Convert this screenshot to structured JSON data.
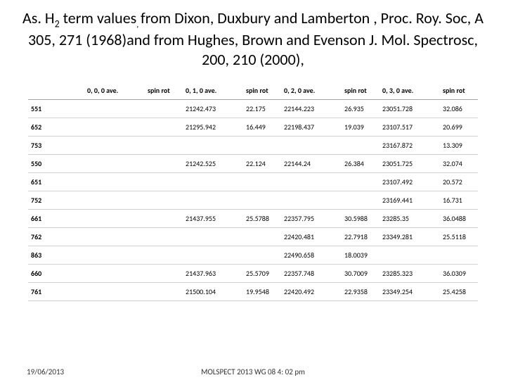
{
  "title_parts": {
    "a": "As. H",
    "sub": "2",
    "b": " term values",
    "comma": ", ",
    "c": "from Dixon, Duxbury and Lamberton , Proc. Roy. Soc, A 305, 271 (1968)and from Hughes, Brown and Evenson J. Mol. Spectrosc, 200, 210 (2000),"
  },
  "columns": [
    "",
    "0, 0, 0 ave.",
    "spin rot",
    "0, 1, 0 ave.",
    "spin rot",
    "0, 2, 0 ave.",
    "spin rot",
    "0, 3, 0 ave.",
    "spin rot"
  ],
  "rows": [
    [
      "551",
      "",
      "",
      "21242.473",
      "22.175",
      "22144.223",
      "26.935",
      "23051.728",
      "32.086"
    ],
    [
      "652",
      "",
      "",
      "21295.942",
      "16.449",
      "22198.437",
      "19.039",
      "23107.517",
      "20.699"
    ],
    [
      "753",
      "",
      "",
      "",
      "",
      "",
      "",
      "23167.872",
      "13.309"
    ],
    [
      "550",
      "",
      "",
      "21242.525",
      "22.124",
      "22144.24",
      "26.384",
      "23051.725",
      "32.074"
    ],
    [
      "651",
      "",
      "",
      "",
      "",
      "",
      "",
      "23107.492",
      "20.572"
    ],
    [
      "752",
      "",
      "",
      "",
      "",
      "",
      "",
      "23169.441",
      "16.731"
    ],
    [
      "661",
      "",
      "",
      "21437.955",
      "25.5788",
      "22357.795",
      "30.5988",
      "23285.35",
      "36.0488"
    ],
    [
      "762",
      "",
      "",
      "",
      "",
      "22420.481",
      "22.7918",
      "23349.281",
      "25.5118"
    ],
    [
      "863",
      "",
      "",
      "",
      "",
      "22490.658",
      "18.0039",
      "",
      ""
    ],
    [
      "660",
      "",
      "",
      "21437.963",
      "25.5709",
      "22357.748",
      "30.7009",
      "23285.323",
      "36.0309"
    ],
    [
      "761",
      "",
      "",
      "21500.104",
      "19.9548",
      "22420.492",
      "22.9358",
      "23349.254",
      "25.4258"
    ]
  ],
  "footer": {
    "date": "19/06/2013",
    "mid": "MOLSPECT 2013 WG 08 4: 02 pm"
  }
}
